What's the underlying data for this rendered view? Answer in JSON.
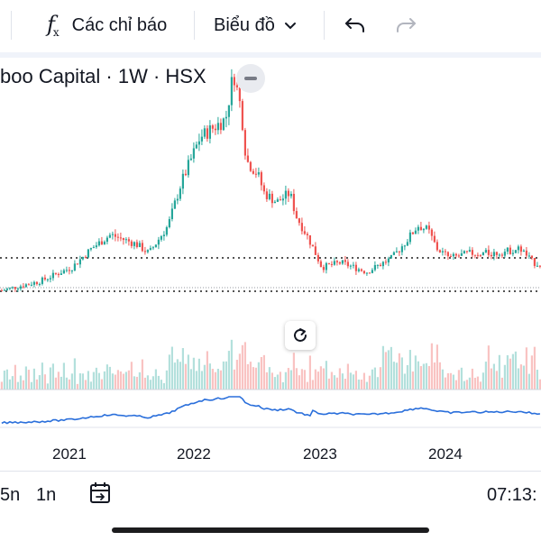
{
  "toolbar": {
    "indicators_label": "Các chỉ báo",
    "chart_type_label": "Biểu đồ"
  },
  "symbol": {
    "title": "boo Capital · 1W · HSX"
  },
  "colors": {
    "up": "#26a69a",
    "down": "#ef5350",
    "line": "#2a6fdb",
    "level": "#555555"
  },
  "chart_data": {
    "type": "candlestick",
    "title": "",
    "x_tick_labels": [
      "2021",
      "2022",
      "2023",
      "2024"
    ],
    "y_tick_labels": [],
    "horizontal_levels": [
      "upper",
      "lower"
    ],
    "price_trend": [
      {
        "t": 2020.3,
        "v": 18
      },
      {
        "t": 2020.75,
        "v": 21
      },
      {
        "t": 2021.0,
        "v": 24
      },
      {
        "t": 2021.15,
        "v": 28
      },
      {
        "t": 2021.3,
        "v": 31
      },
      {
        "t": 2021.5,
        "v": 29
      },
      {
        "t": 2021.6,
        "v": 27
      },
      {
        "t": 2021.75,
        "v": 33
      },
      {
        "t": 2021.85,
        "v": 42
      },
      {
        "t": 2022.0,
        "v": 52
      },
      {
        "t": 2022.1,
        "v": 54
      },
      {
        "t": 2022.2,
        "v": 56
      },
      {
        "t": 2022.26,
        "v": 66
      },
      {
        "t": 2022.32,
        "v": 58
      },
      {
        "t": 2022.36,
        "v": 47
      },
      {
        "t": 2022.45,
        "v": 44
      },
      {
        "t": 2022.5,
        "v": 40
      },
      {
        "t": 2022.6,
        "v": 38
      },
      {
        "t": 2022.7,
        "v": 40
      },
      {
        "t": 2022.75,
        "v": 35
      },
      {
        "t": 2022.85,
        "v": 30
      },
      {
        "t": 2022.95,
        "v": 24
      },
      {
        "t": 2023.1,
        "v": 25
      },
      {
        "t": 2023.3,
        "v": 23
      },
      {
        "t": 2023.5,
        "v": 26
      },
      {
        "t": 2023.62,
        "v": 30
      },
      {
        "t": 2023.7,
        "v": 33
      },
      {
        "t": 2023.78,
        "v": 32
      },
      {
        "t": 2023.85,
        "v": 28
      },
      {
        "t": 2023.95,
        "v": 26
      },
      {
        "t": 2024.1,
        "v": 27
      },
      {
        "t": 2024.3,
        "v": 27
      },
      {
        "t": 2024.5,
        "v": 28
      },
      {
        "t": 2024.6,
        "v": 25
      },
      {
        "t": 2024.75,
        "v": 24
      }
    ]
  },
  "bottom": {
    "range_5y": "5n",
    "range_1y": "1n",
    "clock": "07:13:"
  }
}
